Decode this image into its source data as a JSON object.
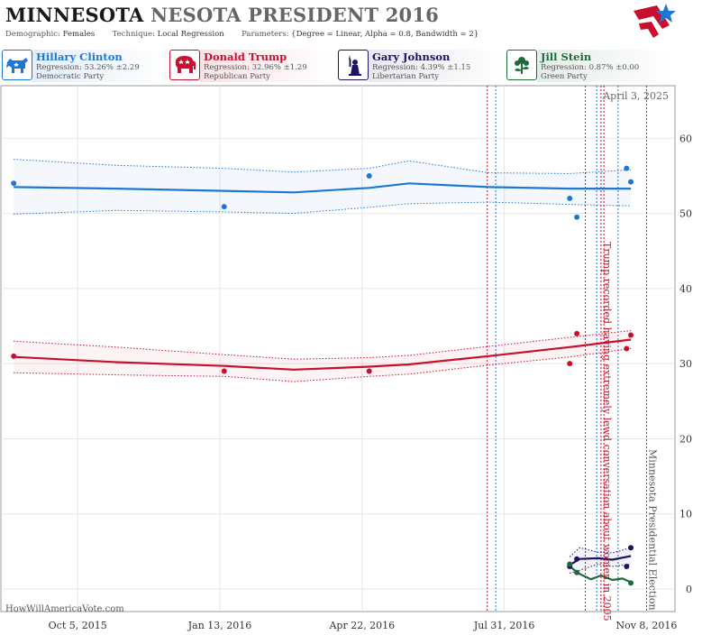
{
  "header": {
    "title_part1": "MINNESOTA",
    "title_part2": "NESOTA PRESIDENT 2016",
    "demographic_label": "Demographic:",
    "demographic_value": "Females",
    "technique_label": "Technique:",
    "technique_value": "Local Regression",
    "parameters_label": "Parameters:",
    "parameters_value": "{Degree = Linear, Alpha = 0.8, Bandwidth = 2}"
  },
  "candidates": [
    {
      "name": "Hillary Clinton",
      "regression": "Regression: 53.26% ±2.29",
      "party": "Democratic Party",
      "color": "#1f77d4",
      "icon": "donkey-icon"
    },
    {
      "name": "Donald Trump",
      "regression": "Regression: 32.96% ±1.29",
      "party": "Republican Party",
      "color": "#c8102e",
      "icon": "elephant-icon"
    },
    {
      "name": "Gary Johnson",
      "regression": "Regression: 4.39% ±1.15",
      "party": "Libertarian Party",
      "color": "#1b1464",
      "icon": "liberty-torch-icon"
    },
    {
      "name": "Jill Stein",
      "regression": "Regression: 0.87% ±0.00",
      "party": "Green Party",
      "color": "#1e6b3a",
      "icon": "flower-icon"
    }
  ],
  "footer": {
    "watermark": "HowWillAmericaVote.com"
  },
  "chart_data": {
    "type": "scatter",
    "title": "MINNESOTA NESOTA PRESIDENT 2016",
    "xlabel": "",
    "ylabel": "",
    "x_range": [
      "2015-08-12",
      "2016-11-28"
    ],
    "ylim": [
      -3,
      67
    ],
    "y_ticks": [
      0,
      10,
      20,
      30,
      40,
      50,
      60
    ],
    "x_ticks": [
      {
        "date": "2015-10-05",
        "label": "Oct 5, 2015"
      },
      {
        "date": "2016-01-13",
        "label": "Jan 13, 2016"
      },
      {
        "date": "2016-04-22",
        "label": "Apr 22, 2016"
      },
      {
        "date": "2016-07-31",
        "label": "Jul 31, 2016"
      },
      {
        "date": "2016-11-08",
        "label": "Nov 8, 2016"
      }
    ],
    "grid": true,
    "today_label": "April 3, 2025",
    "events": [
      {
        "date": "2016-10-07",
        "label": "Trump recorded having extremely lewd conversation about women in 2005",
        "color": "#c8102e"
      },
      {
        "date": "2016-11-08",
        "label": "Minnesota Presidential Election",
        "color": "#555555"
      }
    ],
    "convention_lines": [
      {
        "date": "2016-07-19",
        "color": "#c8102e"
      },
      {
        "date": "2016-07-25",
        "color": "#1f77d4"
      },
      {
        "date": "2016-09-26",
        "color": "#c8102e"
      },
      {
        "date": "2016-10-04",
        "color": "#1f77d4"
      },
      {
        "date": "2016-10-09",
        "color": "#c8102e"
      },
      {
        "date": "2016-10-19",
        "color": "#1f77d4"
      }
    ],
    "series": [
      {
        "name": "Hillary Clinton",
        "color": "#1f77d4",
        "points": [
          {
            "x": "2015-08-21",
            "y": 54.0
          },
          {
            "x": "2016-01-16",
            "y": 50.9
          },
          {
            "x": "2016-04-27",
            "y": 55.0
          },
          {
            "x": "2016-09-15",
            "y": 52.0
          },
          {
            "x": "2016-09-20",
            "y": 49.5
          },
          {
            "x": "2016-10-25",
            "y": 56.0
          },
          {
            "x": "2016-10-28",
            "y": 54.2
          }
        ],
        "fit": [
          {
            "x": "2015-08-21",
            "y": 53.5
          },
          {
            "x": "2015-11-01",
            "y": 53.3
          },
          {
            "x": "2016-01-16",
            "y": 53.0
          },
          {
            "x": "2016-03-05",
            "y": 52.8
          },
          {
            "x": "2016-04-27",
            "y": 53.4
          },
          {
            "x": "2016-05-25",
            "y": 54.0
          },
          {
            "x": "2016-07-20",
            "y": 53.5
          },
          {
            "x": "2016-09-15",
            "y": 53.3
          },
          {
            "x": "2016-10-28",
            "y": 53.3
          }
        ],
        "upper": [
          {
            "x": "2015-08-21",
            "y": 57.2
          },
          {
            "x": "2015-11-01",
            "y": 56.4
          },
          {
            "x": "2016-01-16",
            "y": 56.0
          },
          {
            "x": "2016-03-05",
            "y": 55.5
          },
          {
            "x": "2016-04-27",
            "y": 56.0
          },
          {
            "x": "2016-05-25",
            "y": 57.0
          },
          {
            "x": "2016-07-20",
            "y": 55.4
          },
          {
            "x": "2016-09-15",
            "y": 55.3
          },
          {
            "x": "2016-10-28",
            "y": 55.8
          }
        ],
        "lower": [
          {
            "x": "2015-08-21",
            "y": 49.9
          },
          {
            "x": "2015-11-01",
            "y": 50.4
          },
          {
            "x": "2016-01-16",
            "y": 50.2
          },
          {
            "x": "2016-03-05",
            "y": 50.0
          },
          {
            "x": "2016-04-27",
            "y": 50.8
          },
          {
            "x": "2016-05-25",
            "y": 51.3
          },
          {
            "x": "2016-07-20",
            "y": 51.5
          },
          {
            "x": "2016-09-15",
            "y": 51.2
          },
          {
            "x": "2016-10-28",
            "y": 51.0
          }
        ]
      },
      {
        "name": "Donald Trump",
        "color": "#c8102e",
        "points": [
          {
            "x": "2015-08-21",
            "y": 31.0
          },
          {
            "x": "2016-01-16",
            "y": 29.0
          },
          {
            "x": "2016-04-27",
            "y": 29.0
          },
          {
            "x": "2016-09-15",
            "y": 30.0
          },
          {
            "x": "2016-09-20",
            "y": 34.0
          },
          {
            "x": "2016-10-25",
            "y": 32.0
          },
          {
            "x": "2016-10-28",
            "y": 33.8
          }
        ],
        "fit": [
          {
            "x": "2015-08-21",
            "y": 30.9
          },
          {
            "x": "2015-11-01",
            "y": 30.2
          },
          {
            "x": "2016-01-16",
            "y": 29.7
          },
          {
            "x": "2016-03-05",
            "y": 29.2
          },
          {
            "x": "2016-04-27",
            "y": 29.6
          },
          {
            "x": "2016-05-25",
            "y": 29.9
          },
          {
            "x": "2016-07-20",
            "y": 31.0
          },
          {
            "x": "2016-09-15",
            "y": 32.2
          },
          {
            "x": "2016-10-28",
            "y": 33.2
          }
        ],
        "upper": [
          {
            "x": "2015-08-21",
            "y": 33.0
          },
          {
            "x": "2015-11-01",
            "y": 32.2
          },
          {
            "x": "2016-01-16",
            "y": 31.2
          },
          {
            "x": "2016-03-05",
            "y": 30.6
          },
          {
            "x": "2016-04-27",
            "y": 30.8
          },
          {
            "x": "2016-05-25",
            "y": 31.1
          },
          {
            "x": "2016-07-20",
            "y": 32.3
          },
          {
            "x": "2016-09-15",
            "y": 33.5
          },
          {
            "x": "2016-10-28",
            "y": 34.4
          }
        ],
        "lower": [
          {
            "x": "2015-08-21",
            "y": 28.8
          },
          {
            "x": "2015-11-01",
            "y": 28.5
          },
          {
            "x": "2016-01-16",
            "y": 28.3
          },
          {
            "x": "2016-03-05",
            "y": 27.6
          },
          {
            "x": "2016-04-27",
            "y": 28.3
          },
          {
            "x": "2016-05-25",
            "y": 28.6
          },
          {
            "x": "2016-07-20",
            "y": 29.8
          },
          {
            "x": "2016-09-15",
            "y": 30.9
          },
          {
            "x": "2016-10-28",
            "y": 32.0
          }
        ]
      },
      {
        "name": "Gary Johnson",
        "color": "#1b1464",
        "points": [
          {
            "x": "2016-09-15",
            "y": 3.0
          },
          {
            "x": "2016-09-20",
            "y": 4.0
          },
          {
            "x": "2016-10-25",
            "y": 3.0
          },
          {
            "x": "2016-10-28",
            "y": 5.5
          }
        ],
        "fit": [
          {
            "x": "2016-09-15",
            "y": 3.2
          },
          {
            "x": "2016-09-22",
            "y": 4.0
          },
          {
            "x": "2016-10-05",
            "y": 4.1
          },
          {
            "x": "2016-10-15",
            "y": 3.9
          },
          {
            "x": "2016-10-28",
            "y": 4.4
          }
        ],
        "upper": [
          {
            "x": "2016-09-15",
            "y": 4.3
          },
          {
            "x": "2016-09-22",
            "y": 5.5
          },
          {
            "x": "2016-10-05",
            "y": 4.9
          },
          {
            "x": "2016-10-15",
            "y": 4.8
          },
          {
            "x": "2016-10-28",
            "y": 5.5
          }
        ],
        "lower": [
          {
            "x": "2016-09-15",
            "y": 2.1
          },
          {
            "x": "2016-09-22",
            "y": 2.5
          },
          {
            "x": "2016-10-05",
            "y": 3.3
          },
          {
            "x": "2016-10-15",
            "y": 3.0
          },
          {
            "x": "2016-10-28",
            "y": 3.3
          }
        ]
      },
      {
        "name": "Jill Stein",
        "color": "#1e6b3a",
        "points": [
          {
            "x": "2016-09-15",
            "y": 3.3
          },
          {
            "x": "2016-09-20",
            "y": 2.2
          },
          {
            "x": "2016-10-28",
            "y": 0.8
          }
        ],
        "fit": [
          {
            "x": "2016-09-15",
            "y": 3.0
          },
          {
            "x": "2016-09-22",
            "y": 2.0
          },
          {
            "x": "2016-09-30",
            "y": 1.3
          },
          {
            "x": "2016-10-07",
            "y": 1.8
          },
          {
            "x": "2016-10-15",
            "y": 1.2
          },
          {
            "x": "2016-10-22",
            "y": 1.4
          },
          {
            "x": "2016-10-28",
            "y": 0.9
          }
        ]
      }
    ]
  }
}
